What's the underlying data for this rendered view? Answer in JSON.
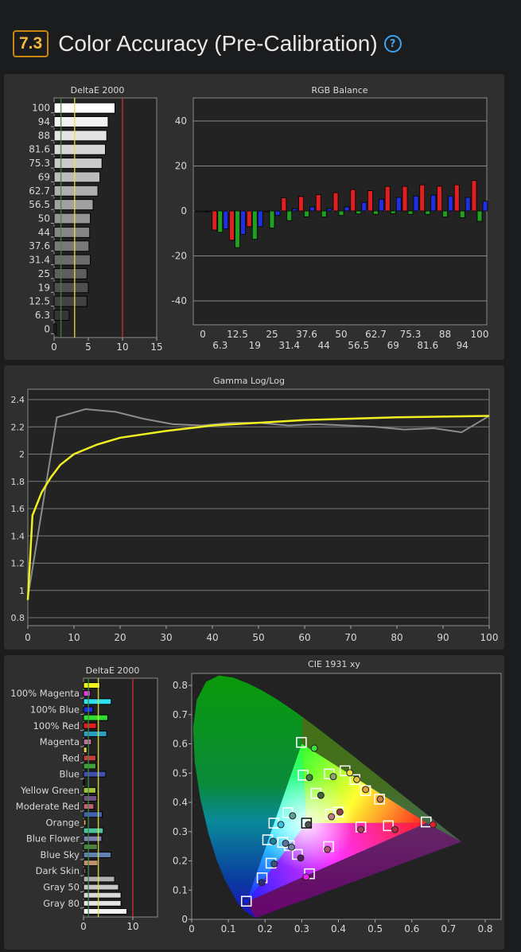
{
  "header": {
    "score": "7.3",
    "title": "Color Accuracy (Pre-Calibration)",
    "help_icon": "question-circle-icon"
  },
  "colors": {
    "score_border": "#c8870a",
    "score_text": "#f5b93a",
    "help": "#3ba3f0",
    "ref_green": "#3c8a3c",
    "ref_yellow": "#e6e63c",
    "ref_red": "#d23232",
    "gamma_target": "#f0f020",
    "gamma_measured": "#8c8c8c"
  },
  "chart_data": [
    {
      "type": "bar",
      "orientation": "horizontal",
      "title": "DeltaE 2000",
      "categories": [
        "100",
        "94",
        "88",
        "81.6",
        "75.3",
        "69",
        "62.7",
        "56.5",
        "50",
        "44",
        "37.6",
        "31.4",
        "25",
        "19",
        "12.5",
        "6.3",
        "0"
      ],
      "values": [
        8.9,
        7.9,
        7.7,
        7.5,
        7.0,
        6.7,
        6.4,
        5.7,
        5.3,
        5.2,
        5.1,
        5.3,
        4.8,
        5.0,
        4.8,
        2.2,
        0.3
      ],
      "xlim": [
        0,
        15
      ],
      "xticks": [
        "0",
        "5",
        "10",
        "15"
      ],
      "reference_lines": [
        1,
        3,
        10
      ]
    },
    {
      "type": "bar",
      "title": "RGB Balance",
      "categories": [
        "0",
        "6.3",
        "12.5",
        "19",
        "25",
        "31.4",
        "37.6",
        "44",
        "50",
        "56.5",
        "62.7",
        "69",
        "75.3",
        "81.6",
        "88",
        "94",
        "100"
      ],
      "series": [
        {
          "color": "#e02020",
          "values": [
            0,
            -8.5,
            -13,
            -7,
            -0.3,
            5.8,
            6.4,
            7.2,
            8.1,
            9.5,
            9.0,
            10.9,
            10.9,
            11.6,
            11.0,
            11.6,
            13.5
          ]
        },
        {
          "color": "#20a020",
          "values": [
            0,
            -9.5,
            -16.3,
            -12.6,
            -7.6,
            -4.3,
            -2.6,
            -2.7,
            -2.0,
            -1.3,
            -1.5,
            -1.2,
            -1.5,
            -1.5,
            -2.7,
            -3.0,
            -4.6
          ]
        },
        {
          "color": "#2030e0",
          "values": [
            0,
            -8,
            -10.4,
            -7,
            -2,
            1,
            1.8,
            1,
            1.8,
            3.8,
            5.2,
            6.0,
            6.6,
            7.0,
            6.6,
            6.0,
            4.3
          ]
        }
      ],
      "ylim": [
        -45,
        45
      ],
      "yticks": [
        "40",
        "20",
        "0",
        "-20",
        "-40"
      ]
    },
    {
      "type": "line",
      "title": "Gamma Log/Log",
      "xlim": [
        0,
        100
      ],
      "ylim": [
        0.74,
        2.48
      ],
      "xticks": [
        "0",
        "10",
        "20",
        "30",
        "40",
        "50",
        "60",
        "70",
        "80",
        "90",
        "100"
      ],
      "yticks": [
        "2.4",
        "2.2",
        "2",
        "1.8",
        "1.6",
        "1.4",
        "1.2",
        "1",
        "0.8"
      ],
      "series": [
        {
          "color": "#8c8c8c",
          "x": [
            0,
            6.3,
            12.5,
            19,
            25,
            31.4,
            37.6,
            44,
            50,
            56.5,
            62.7,
            69,
            75.3,
            81.6,
            88,
            94,
            100
          ],
          "y": [
            0.95,
            2.27,
            2.33,
            2.31,
            2.26,
            2.22,
            2.21,
            2.23,
            2.23,
            2.21,
            2.22,
            2.21,
            2.2,
            2.18,
            2.19,
            2.16,
            2.28
          ]
        },
        {
          "color": "#f0f020",
          "x": [
            0,
            1,
            3,
            5,
            7,
            10,
            15,
            20,
            30,
            40,
            50,
            60,
            70,
            80,
            90,
            100
          ],
          "y": [
            0.93,
            1.55,
            1.72,
            1.83,
            1.92,
            2.0,
            2.07,
            2.12,
            2.17,
            2.21,
            2.23,
            2.25,
            2.26,
            2.27,
            2.275,
            2.28
          ]
        }
      ]
    },
    {
      "type": "bar",
      "orientation": "horizontal",
      "title": "DeltaE 2000",
      "categories": [
        "",
        "100% Magenta",
        "",
        "100% Blue",
        "",
        "100% Red",
        "",
        "Magenta",
        "",
        "Red",
        "",
        "Blue",
        "",
        "Yellow Green",
        "",
        "Moderate Red",
        "",
        "Orange",
        "",
        "Blue Flower",
        "",
        "Blue Sky",
        "",
        "Dark Skin",
        "",
        "Gray 50",
        "",
        "Gray 80",
        ""
      ],
      "values": [
        3.3,
        1.4,
        5.6,
        1.9,
        4.9,
        2.6,
        4.7,
        1.6,
        0.7,
        2.5,
        2.5,
        4.5,
        0.1,
        2.5,
        2.7,
        2.1,
        3.8,
        0.5,
        4.0,
        3.7,
        2.8,
        5.6,
        2.9,
        0.5,
        6.3,
        7.1,
        7.6,
        7.6,
        8.8
      ],
      "colors": [
        "#f0f020",
        "#e040e0",
        "#30e0f0",
        "#2030e0",
        "#30e030",
        "#e02020",
        "#2aa0c0",
        "#c070a0",
        "#e0d040",
        "#c04040",
        "#40a040",
        "#4050b0",
        "#e0e0e0",
        "#a0c040",
        "#705080",
        "#c06070",
        "#4060b0",
        "#e0a050",
        "#50c0a0",
        "#8080b0",
        "#508040",
        "#6080b0",
        "#c09070",
        "#705050",
        "#b0b0b0",
        "#c8c8c8",
        "#d8d8d8",
        "#e4e4e4",
        "#f4f4f4"
      ],
      "xlim": [
        0,
        15
      ],
      "xticks": [
        "0",
        "10"
      ],
      "reference_lines": [
        1,
        3,
        10
      ]
    },
    {
      "type": "scatter",
      "title": "CIE 1931 xy",
      "xlim": [
        0,
        0.84
      ],
      "ylim": [
        0,
        0.84
      ],
      "xticks": [
        "0",
        "0.1",
        "0.2",
        "0.3",
        "0.4",
        "0.5",
        "0.6",
        "0.7",
        "0.8"
      ],
      "yticks": [
        "0",
        "0.1",
        "0.2",
        "0.3",
        "0.4",
        "0.5",
        "0.6",
        "0.7",
        "0.8"
      ],
      "gamut": {
        "red": [
          0.64,
          0.33
        ],
        "green": [
          0.3,
          0.6
        ],
        "blue": [
          0.15,
          0.06
        ]
      },
      "targets": [
        [
          0.299,
          0.605
        ],
        [
          0.304,
          0.493
        ],
        [
          0.375,
          0.497
        ],
        [
          0.418,
          0.508
        ],
        [
          0.445,
          0.478
        ],
        [
          0.474,
          0.44
        ],
        [
          0.512,
          0.411
        ],
        [
          0.339,
          0.431
        ],
        [
          0.262,
          0.365
        ],
        [
          0.378,
          0.36
        ],
        [
          0.4,
          0.367
        ],
        [
          0.224,
          0.329
        ],
        [
          0.313,
          0.329
        ],
        [
          0.461,
          0.316
        ],
        [
          0.536,
          0.32
        ],
        [
          0.639,
          0.333
        ],
        [
          0.207,
          0.272
        ],
        [
          0.248,
          0.263
        ],
        [
          0.266,
          0.252
        ],
        [
          0.288,
          0.222
        ],
        [
          0.373,
          0.249
        ],
        [
          0.216,
          0.192
        ],
        [
          0.321,
          0.156
        ],
        [
          0.192,
          0.142
        ],
        [
          0.149,
          0.062
        ]
      ],
      "measured": [
        [
          0.334,
          0.585
        ],
        [
          0.321,
          0.485
        ],
        [
          0.386,
          0.488
        ],
        [
          0.431,
          0.501
        ],
        [
          0.45,
          0.478
        ],
        [
          0.474,
          0.444
        ],
        [
          0.514,
          0.411
        ],
        [
          0.352,
          0.424
        ],
        [
          0.275,
          0.354
        ],
        [
          0.381,
          0.351
        ],
        [
          0.404,
          0.367
        ],
        [
          0.243,
          0.324
        ],
        [
          0.318,
          0.324
        ],
        [
          0.461,
          0.307
        ],
        [
          0.554,
          0.307
        ],
        [
          0.658,
          0.324
        ],
        [
          0.222,
          0.267
        ],
        [
          0.256,
          0.26
        ],
        [
          0.272,
          0.247
        ],
        [
          0.297,
          0.21
        ],
        [
          0.37,
          0.239
        ],
        [
          0.225,
          0.19
        ],
        [
          0.312,
          0.145
        ],
        [
          0.191,
          0.126
        ],
        [
          0.149,
          0.062
        ]
      ],
      "measured_colors": [
        "#40e040",
        "#40803c",
        "#90a070",
        "#f0e040",
        "#e0c040",
        "#e0a040",
        "#d08040",
        "#406040",
        "#60a090",
        "#c08080",
        "#904040",
        "#40c0e0",
        "#505050",
        "#b04060",
        "#b03040",
        "#e02030",
        "#2080a0",
        "#6070a0",
        "#7080a0",
        "#502060",
        "#b05080",
        "#405080",
        "#f020f0",
        "#303070",
        "#1020e0"
      ]
    }
  ]
}
